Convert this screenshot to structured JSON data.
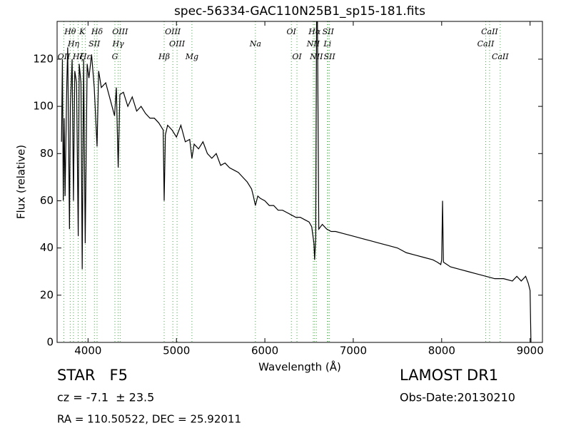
{
  "chart_data": {
    "type": "line",
    "title": "spec-56334-GAC110N25B1_sp15-181.fits",
    "x_label": "Wavelength (Å)",
    "y_label": "Flux (relative)",
    "xlim": [
      3650,
      9140
    ],
    "ylim": [
      0,
      136
    ],
    "xticks": [
      4000,
      5000,
      6000,
      7000,
      8000,
      9000
    ],
    "yticks": [
      0,
      20,
      40,
      60,
      80,
      100,
      120
    ],
    "series": [
      {
        "color": "#000000",
        "x": [
          3700,
          3710,
          3720,
          3730,
          3740,
          3760,
          3770,
          3790,
          3800,
          3820,
          3835,
          3850,
          3870,
          3889,
          3900,
          3920,
          3934,
          3950,
          3968,
          3990,
          4010,
          4040,
          4070,
          4102,
          4120,
          4150,
          4200,
          4250,
          4300,
          4320,
          4341,
          4360,
          4400,
          4450,
          4500,
          4550,
          4600,
          4650,
          4700,
          4750,
          4800,
          4850,
          4861,
          4875,
          4900,
          4950,
          5000,
          5050,
          5100,
          5150,
          5175,
          5200,
          5250,
          5300,
          5350,
          5400,
          5450,
          5500,
          5550,
          5600,
          5650,
          5700,
          5750,
          5800,
          5850,
          5870,
          5893,
          5920,
          5950,
          6000,
          6050,
          6100,
          6150,
          6200,
          6250,
          6300,
          6350,
          6400,
          6450,
          6500,
          6530,
          6555,
          6563,
          6575,
          6585,
          6595,
          6610,
          6650,
          6700,
          6750,
          6800,
          6900,
          7000,
          7100,
          7200,
          7300,
          7400,
          7500,
          7600,
          7700,
          7800,
          7900,
          7950,
          7990,
          8000,
          8010,
          8020,
          8100,
          8200,
          8300,
          8400,
          8500,
          8600,
          8700,
          8800,
          8850,
          8900,
          8950,
          8980,
          9000,
          9010
        ],
        "values": [
          85,
          120,
          60,
          95,
          62,
          110,
          125,
          48,
          100,
          120,
          60,
          115,
          110,
          45,
          118,
          110,
          31,
          120,
          42,
          118,
          112,
          122,
          108,
          83,
          115,
          108,
          110,
          103,
          96,
          108,
          74,
          105,
          106,
          100,
          104,
          98,
          100,
          97,
          95,
          95,
          93,
          90,
          60,
          88,
          92,
          90,
          87,
          92,
          85,
          86,
          78,
          84,
          82,
          85,
          80,
          78,
          80,
          75,
          76,
          74,
          73,
          72,
          70,
          68,
          65,
          62,
          58,
          62,
          61,
          60,
          58,
          58,
          56,
          56,
          55,
          54,
          53,
          53,
          52,
          51,
          49,
          42,
          35,
          44,
          136,
          136,
          48,
          50,
          48,
          47,
          47,
          46,
          45,
          44,
          43,
          42,
          41,
          40,
          38,
          37,
          36,
          35,
          34,
          33,
          35,
          60,
          34,
          32,
          31,
          30,
          29,
          28,
          27,
          27,
          26,
          28,
          26,
          28,
          25,
          22,
          0
        ]
      }
    ],
    "lines_color": "#44aa44",
    "lines": [
      {
        "x": 3727,
        "label": "OII"
      },
      {
        "x": 3798,
        "label": "Hθ"
      },
      {
        "x": 3835,
        "label": "Hη"
      },
      {
        "x": 3889,
        "label": "Hζ"
      },
      {
        "x": 3934,
        "label": "K"
      },
      {
        "x": 3970,
        "label": "Hε"
      },
      {
        "x": 4072,
        "label": "SII"
      },
      {
        "x": 4102,
        "label": "Hδ"
      },
      {
        "x": 4304,
        "label": "G"
      },
      {
        "x": 4341,
        "label": "Hγ"
      },
      {
        "x": 4363,
        "label": "OIII"
      },
      {
        "x": 4861,
        "label": "Hβ"
      },
      {
        "x": 4959,
        "label": "OIII"
      },
      {
        "x": 5007,
        "label": "OIII"
      },
      {
        "x": 5175,
        "label": "Mg"
      },
      {
        "x": 5893,
        "label": "Na"
      },
      {
        "x": 6300,
        "label": "OI"
      },
      {
        "x": 6363,
        "label": "OI"
      },
      {
        "x": 6548,
        "label": "NII"
      },
      {
        "x": 6563,
        "label": "Hα"
      },
      {
        "x": 6583,
        "label": "NII"
      },
      {
        "x": 6708,
        "label": "Li"
      },
      {
        "x": 6716,
        "label": "SII"
      },
      {
        "x": 6731,
        "label": "SII"
      },
      {
        "x": 8498,
        "label": "CaII"
      },
      {
        "x": 8542,
        "label": "CaII"
      },
      {
        "x": 8662,
        "label": "CaII"
      }
    ],
    "class_label": "STAR   F5",
    "cz_label": "cz = -7.1  ± 23.5",
    "coord_label": "RA = 110.50522, DEC = 25.92011",
    "survey_label": "LAMOST DR1",
    "date_label": "Obs-Date:20130210"
  }
}
